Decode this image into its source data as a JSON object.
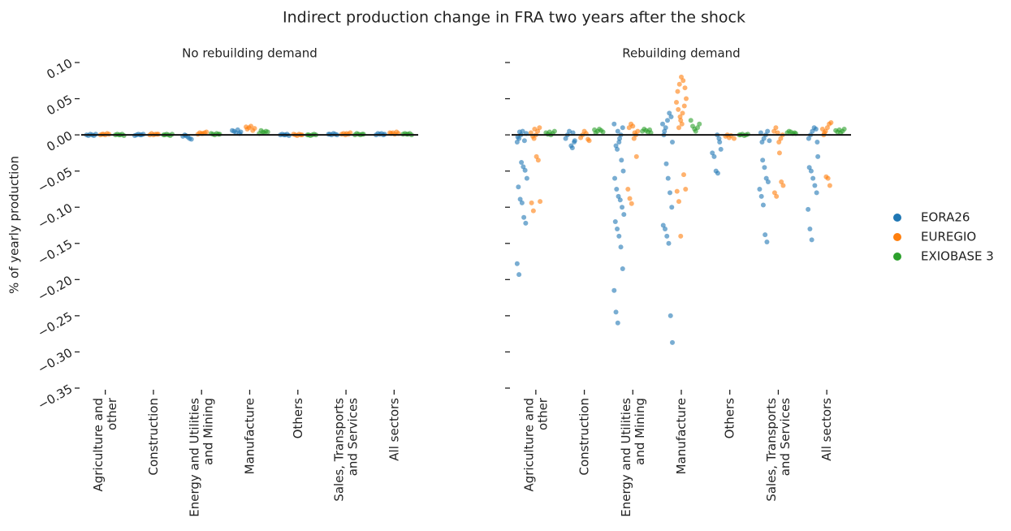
{
  "chart_data": {
    "type": "strip",
    "title": "Indirect production change in FRA two years after the shock",
    "ylabel": "% of yearly production",
    "panel_titles": [
      "No rebuilding demand",
      "Rebuilding demand"
    ],
    "categories": [
      "Agriculture and\nother",
      "Construction",
      "Energy and Utilities\nand Mining",
      "Manufacture",
      "Others",
      "Sales, Transports\nand Services",
      "All sectors"
    ],
    "ylim": [
      -0.35,
      0.1
    ],
    "yticks": [
      {
        "value": 0.1,
        "label": "0.10"
      },
      {
        "value": 0.05,
        "label": "0.05"
      },
      {
        "value": 0,
        "label": "0.00"
      },
      {
        "value": -0.05,
        "label": "−0.05"
      },
      {
        "value": -0.1,
        "label": "−0.10"
      },
      {
        "value": -0.15,
        "label": "−0.15"
      },
      {
        "value": -0.2,
        "label": "−0.20"
      },
      {
        "value": -0.25,
        "label": "−0.25"
      },
      {
        "value": -0.3,
        "label": "−0.30"
      },
      {
        "value": -0.35,
        "label": "−0.35"
      }
    ],
    "reference_line": 0,
    "legend": "right",
    "series": [
      {
        "name": "EORA26",
        "color": "#1f77b4",
        "values": [
          [
            [
              0,
              -0.001,
              0.001,
              0,
              -0.001,
              0.001
            ],
            [
              0,
              0.001,
              -0.001,
              0,
              0.001,
              0
            ],
            [
              -0.001,
              -0.003,
              -0.005,
              -0.006,
              -0.002,
              0
            ],
            [
              0.004,
              0.006,
              0.005,
              0.003,
              0.007,
              0.002
            ],
            [
              0,
              0.001,
              -0.001,
              0,
              0.001,
              0
            ],
            [
              0.001,
              0,
              0.002,
              0.001,
              0,
              0.001
            ],
            [
              0.001,
              0,
              0.002,
              0.001,
              0.002,
              0
            ]
          ],
          [
            [
              -0.01,
              -0.005,
              0,
              0.005,
              -0.008,
              0.002,
              -0.003,
              0.004,
              -0.038,
              -0.044,
              -0.049,
              -0.06,
              -0.072,
              -0.089,
              -0.094,
              -0.114,
              -0.122,
              -0.178,
              -0.193
            ],
            [
              -0.018,
              -0.01,
              -0.005,
              0,
              0.005,
              -0.015,
              0.003,
              -0.008
            ],
            [
              -0.02,
              -0.01,
              0,
              0.01,
              0.015,
              -0.015,
              0.005,
              -0.005,
              -0.035,
              -0.05,
              -0.06,
              -0.075,
              -0.085,
              -0.09,
              -0.1,
              -0.11,
              -0.12,
              -0.13,
              -0.14,
              -0.155,
              -0.185,
              -0.215,
              -0.245,
              -0.26
            ],
            [
              -0.01,
              0,
              0.01,
              0.02,
              0.03,
              0.025,
              0.015,
              0.005,
              -0.04,
              -0.06,
              -0.08,
              -0.1,
              -0.125,
              -0.13,
              -0.14,
              -0.15,
              -0.25,
              -0.287
            ],
            [
              0,
              -0.005,
              -0.02,
              -0.025,
              -0.03,
              -0.05,
              -0.053,
              -0.01
            ],
            [
              -0.01,
              -0.005,
              0,
              0.005,
              -0.008,
              0.003,
              -0.035,
              -0.045,
              -0.06,
              -0.065,
              -0.075,
              -0.085,
              -0.097,
              -0.138,
              -0.148
            ],
            [
              -0.01,
              -0.005,
              0,
              0.005,
              0.01,
              0.008,
              -0.03,
              -0.045,
              -0.05,
              -0.06,
              -0.07,
              -0.08,
              -0.103,
              -0.13,
              -0.145
            ]
          ]
        ]
      },
      {
        "name": "EUREGIO",
        "color": "#ff7f0e",
        "values": [
          [
            [
              0.001,
              0,
              0.002,
              0.001,
              0,
              0.001
            ],
            [
              0.001,
              0,
              0.002,
              0,
              0.001,
              0.001
            ],
            [
              0.002,
              0.003,
              0.004,
              0.001,
              0.003,
              0.002
            ],
            [
              0.008,
              0.01,
              0.012,
              0.006,
              0.009,
              0.011
            ],
            [
              0,
              0.001,
              0,
              -0.001,
              0.001,
              0
            ],
            [
              0.002,
              0.001,
              0.003,
              0.001,
              0.002,
              0
            ],
            [
              0.002,
              0.003,
              0.001,
              0.004,
              0.002,
              0.003
            ]
          ],
          [
            [
              -0.005,
              0,
              0.005,
              0.01,
              0.003,
              -0.002,
              0.008,
              -0.03,
              -0.035,
              -0.092,
              -0.094,
              -0.105
            ],
            [
              -0.008,
              -0.004,
              0,
              0.005,
              0.002,
              -0.006
            ],
            [
              -0.005,
              0,
              0.005,
              0.01,
              0.015,
              0.012,
              0.003,
              -0.03,
              -0.075,
              -0.088,
              -0.095
            ],
            [
              0.01,
              0.02,
              0.03,
              0.04,
              0.05,
              0.06,
              0.07,
              0.08,
              0.075,
              0.065,
              0.045,
              0.035,
              0.025,
              0.015,
              -0.055,
              -0.075,
              -0.078,
              -0.092,
              -0.14
            ],
            [
              -0.005,
              -0.002,
              0,
              -0.004,
              -0.001
            ],
            [
              -0.01,
              -0.005,
              0,
              0.005,
              0.01,
              0.003,
              -0.025,
              -0.065,
              -0.07,
              -0.08,
              -0.085
            ],
            [
              0,
              0.005,
              0.01,
              0.015,
              0.017,
              0.008,
              0.003,
              -0.058,
              -0.06,
              -0.07
            ]
          ]
        ]
      },
      {
        "name": "EXIOBASE 3",
        "color": "#2ca02c",
        "values": [
          [
            [
              0,
              0.001,
              -0.001,
              0,
              0.001,
              0
            ],
            [
              0,
              0.001,
              0,
              -0.001,
              0.001,
              0
            ],
            [
              0.001,
              0.002,
              0.001,
              0,
              0.002,
              0.001
            ],
            [
              0.003,
              0.005,
              0.004,
              0.002,
              0.006,
              0.004
            ],
            [
              0,
              -0.001,
              0,
              0.001,
              0,
              0
            ],
            [
              0.001,
              0,
              0.002,
              0.001,
              0,
              0.001
            ],
            [
              0.001,
              0.002,
              0,
              0.001,
              0.002,
              0.001
            ]
          ],
          [
            [
              0,
              0.002,
              0.005,
              0.003,
              0.001,
              0.004
            ],
            [
              0.003,
              0.005,
              0.008,
              0.006,
              0.004,
              0.007
            ],
            [
              0.003,
              0.005,
              0.008,
              0.006,
              0.004,
              0.007
            ],
            [
              0.005,
              0.01,
              0.015,
              0.02,
              0.012,
              0.008
            ],
            [
              0,
              0.001,
              -0.001,
              0,
              0.001,
              0
            ],
            [
              0.002,
              0.003,
              0.005,
              0.004,
              0.002,
              0.003
            ],
            [
              0.003,
              0.005,
              0.008,
              0.006,
              0.004,
              0.007
            ]
          ]
        ]
      }
    ]
  }
}
